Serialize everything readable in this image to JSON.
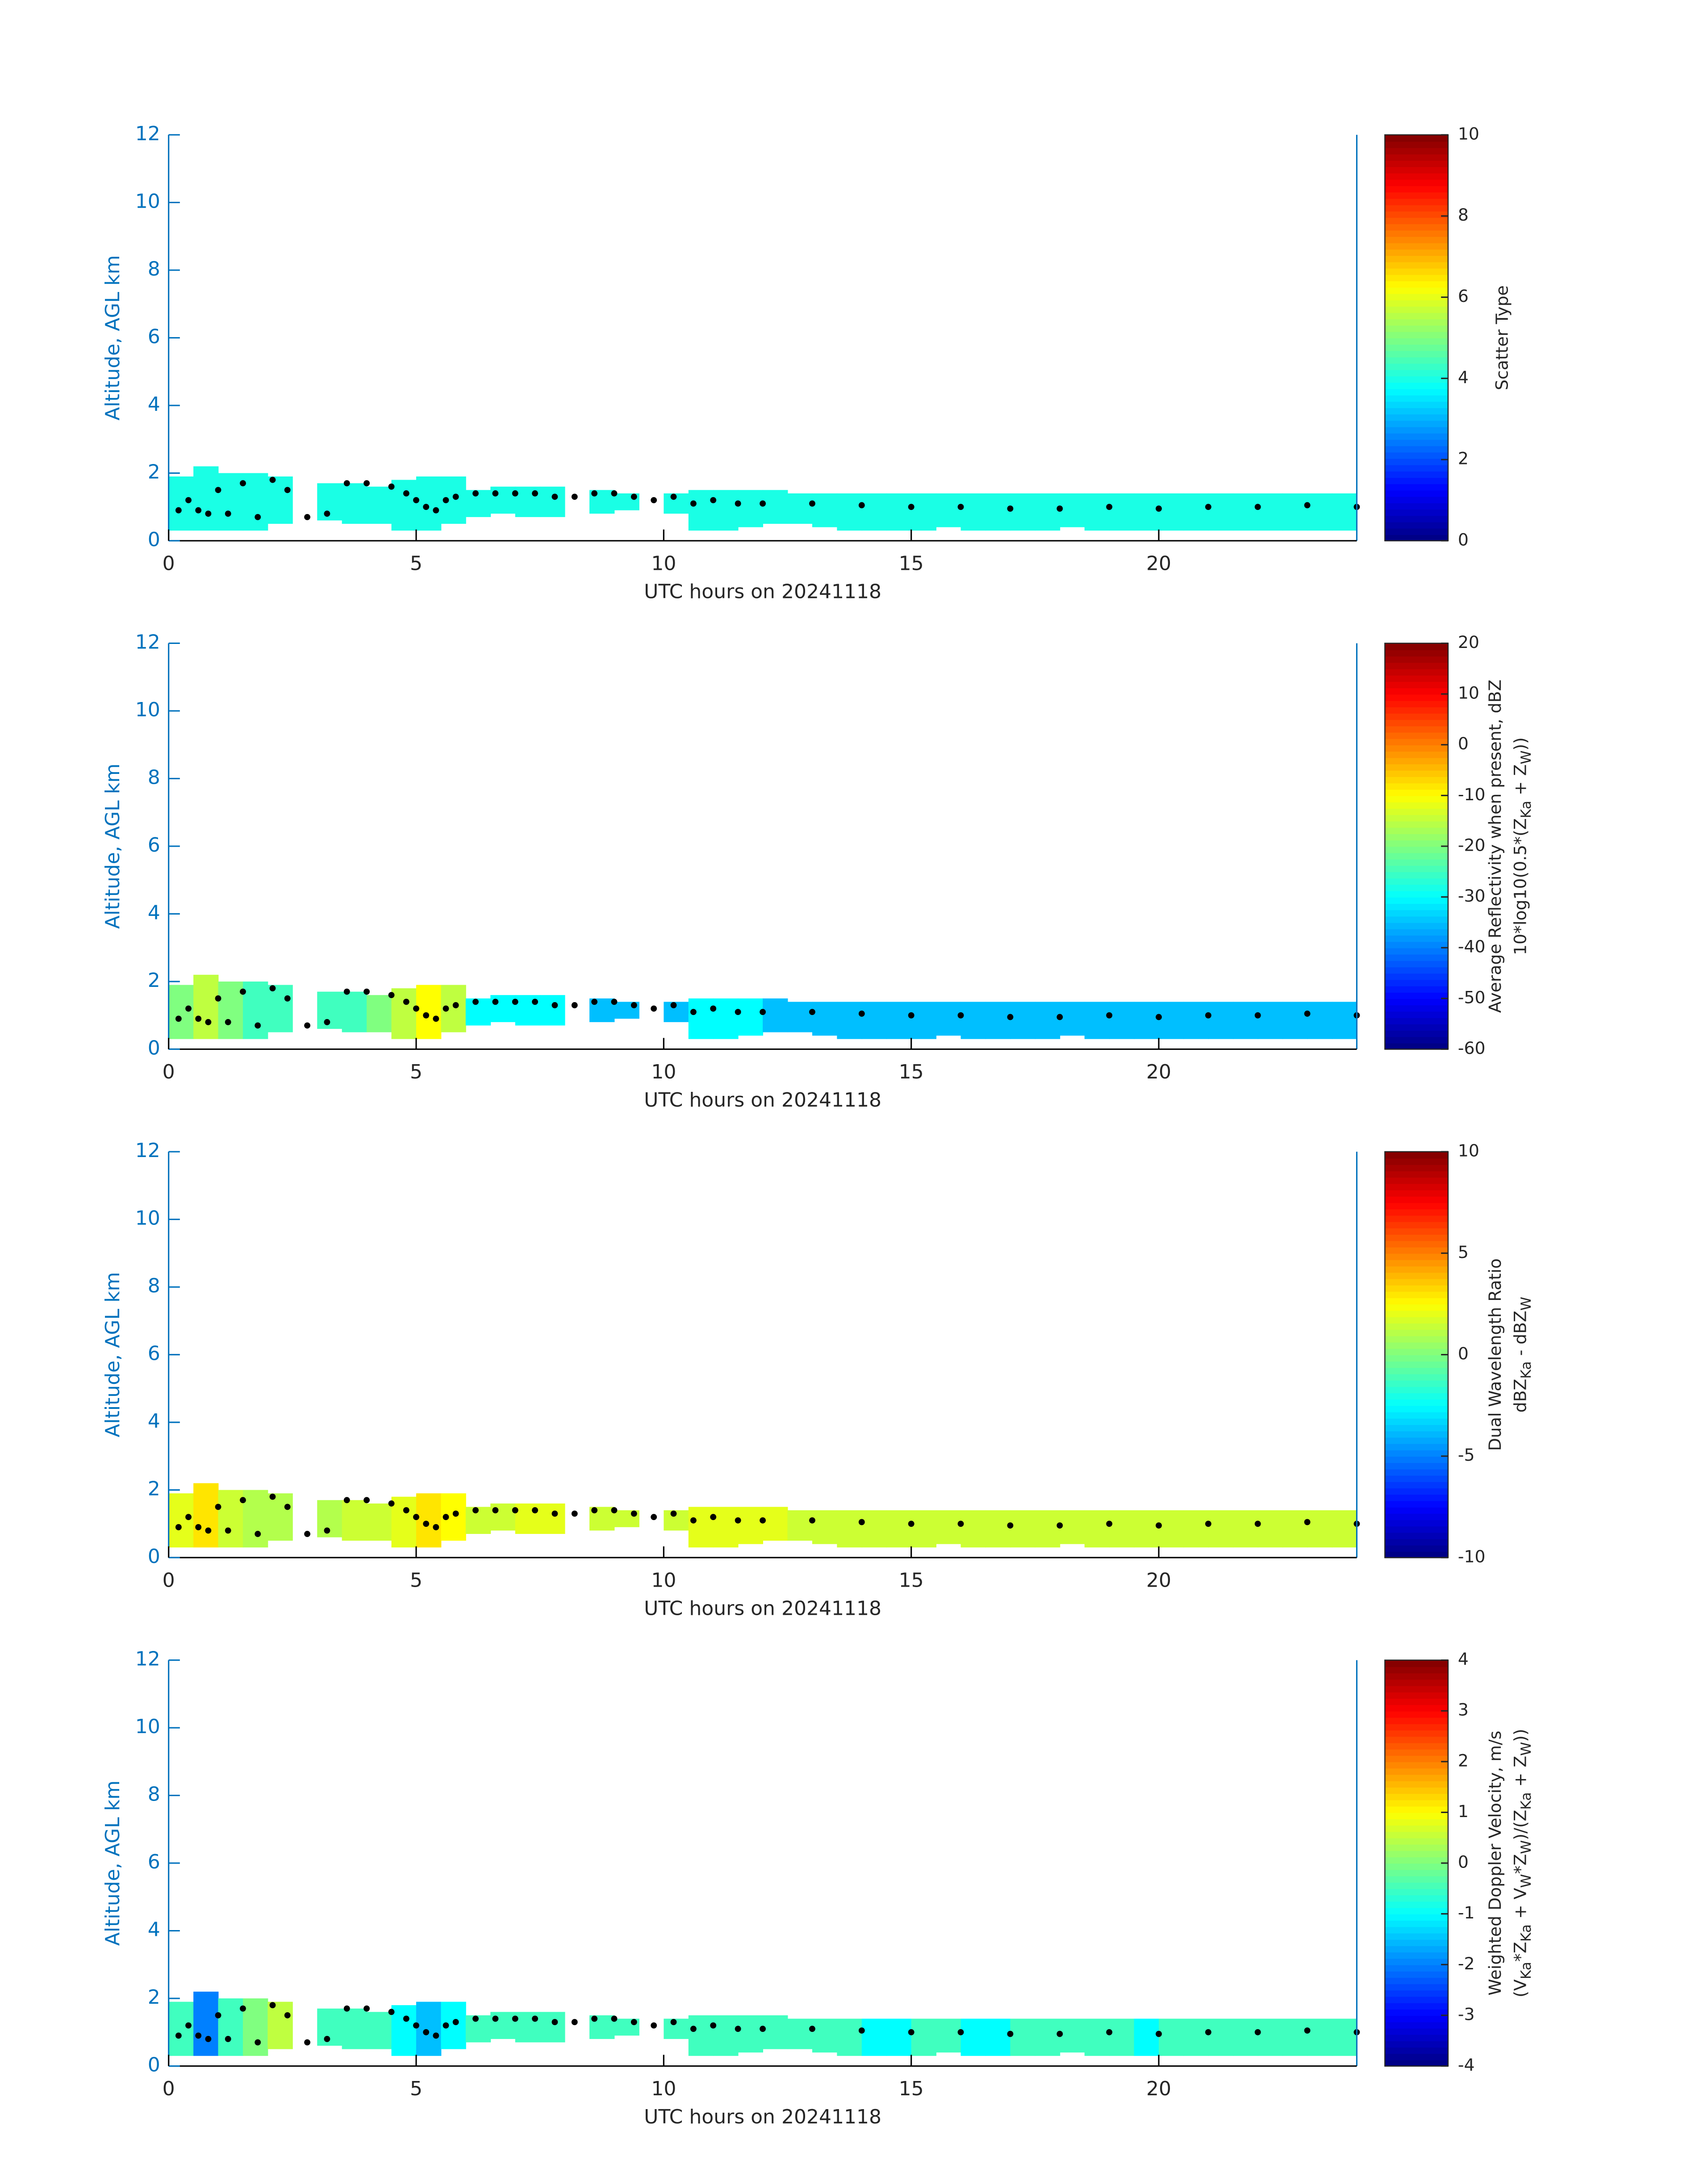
{
  "chart_data": [
    {
      "type": "heatmap",
      "xlabel": "UTC hours on 20241118",
      "ylabel": "Altitude, AGL km",
      "xlim": [
        0,
        24
      ],
      "xticks": [
        0,
        5,
        10,
        15,
        20
      ],
      "ylim": [
        0,
        12
      ],
      "yticks": [
        0,
        2,
        4,
        6,
        8,
        10,
        12
      ],
      "colormap": "jet",
      "clim": [
        0,
        10
      ],
      "cticks": [
        0,
        2,
        4,
        6,
        8,
        10
      ],
      "colorbar_label": [
        [
          "Scatter Type"
        ]
      ],
      "x": [
        0.25,
        0.75,
        1.25,
        1.75,
        2.25,
        2.75,
        3.25,
        3.75,
        4.25,
        4.75,
        5.25,
        5.75,
        6.25,
        6.75,
        7.25,
        7.75,
        8.25,
        8.75,
        9.25,
        9.75,
        10.25,
        10.75,
        11.25,
        11.75,
        12.25,
        12.75,
        13.25,
        13.75,
        14.25,
        14.75,
        15.25,
        15.75,
        16.25,
        16.75,
        17.25,
        17.75,
        18.25,
        18.75,
        19.25,
        19.75,
        20.25,
        20.75,
        21.25,
        21.75,
        22.25,
        22.75,
        23.25,
        23.75
      ],
      "top": [
        1.9,
        2.2,
        2.0,
        2.0,
        1.9,
        null,
        1.7,
        1.7,
        1.6,
        1.8,
        1.9,
        1.9,
        1.5,
        1.6,
        1.6,
        1.6,
        null,
        1.5,
        1.4,
        null,
        1.4,
        1.5,
        1.5,
        1.5,
        1.5,
        1.4,
        1.4,
        1.4,
        1.4,
        1.4,
        1.4,
        1.4,
        1.4,
        1.4,
        1.4,
        1.4,
        1.4,
        1.4,
        1.4,
        1.4,
        1.4,
        1.4,
        1.4,
        1.4,
        1.4,
        1.4,
        1.4,
        1.4
      ],
      "bottom": [
        0.3,
        0.3,
        0.3,
        0.3,
        0.5,
        null,
        0.6,
        0.5,
        0.5,
        0.3,
        0.3,
        0.5,
        0.7,
        0.8,
        0.7,
        0.7,
        null,
        0.8,
        0.9,
        null,
        0.8,
        0.3,
        0.3,
        0.4,
        0.5,
        0.5,
        0.4,
        0.3,
        0.3,
        0.3,
        0.3,
        0.4,
        0.3,
        0.3,
        0.3,
        0.3,
        0.4,
        0.3,
        0.3,
        0.3,
        0.3,
        0.3,
        0.3,
        0.3,
        0.3,
        0.3,
        0.3,
        0.3
      ],
      "values": [
        4,
        4,
        4,
        4,
        4,
        null,
        4,
        4,
        4,
        4,
        4,
        4,
        4,
        4,
        4,
        4,
        null,
        4,
        4,
        null,
        4,
        4,
        4,
        4,
        4,
        4,
        4,
        4,
        4,
        4,
        4,
        4,
        4,
        4,
        4,
        4,
        4,
        4,
        4,
        4,
        4,
        4,
        4,
        4,
        4,
        4,
        4,
        4
      ],
      "cloud_base": {
        "color": "#000000",
        "x": [
          0.2,
          0.4,
          0.6,
          0.8,
          1.0,
          1.2,
          1.5,
          1.8,
          2.1,
          2.4,
          2.8,
          3.2,
          3.6,
          4.0,
          4.5,
          4.8,
          5.0,
          5.2,
          5.4,
          5.6,
          5.8,
          6.2,
          6.6,
          7.0,
          7.4,
          7.8,
          8.2,
          8.6,
          9.0,
          9.4,
          9.8,
          10.2,
          10.6,
          11,
          11.5,
          12,
          13,
          14,
          15,
          16,
          17,
          18,
          19,
          20,
          21,
          22,
          23,
          24
        ],
        "y": [
          0.9,
          1.2,
          0.9,
          0.8,
          1.5,
          0.8,
          1.7,
          0.7,
          1.8,
          1.5,
          0.7,
          0.8,
          1.7,
          1.7,
          1.6,
          1.4,
          1.2,
          1.0,
          0.9,
          1.2,
          1.3,
          1.4,
          1.4,
          1.4,
          1.4,
          1.3,
          1.3,
          1.4,
          1.4,
          1.3,
          1.2,
          1.3,
          1.1,
          1.2,
          1.1,
          1.1,
          1.1,
          1.05,
          1.0,
          1.0,
          0.95,
          0.95,
          1.0,
          0.95,
          1.0,
          1.0,
          1.05,
          1.0
        ]
      }
    },
    {
      "type": "heatmap",
      "xlabel": "UTC hours on 20241118",
      "ylabel": "Altitude, AGL km",
      "xlim": [
        0,
        24
      ],
      "xticks": [
        0,
        5,
        10,
        15,
        20
      ],
      "ylim": [
        0,
        12
      ],
      "yticks": [
        0,
        2,
        4,
        6,
        8,
        10,
        12
      ],
      "colormap": "jet",
      "clim": [
        -60,
        20
      ],
      "cticks": [
        -60,
        -50,
        -40,
        -30,
        -20,
        -10,
        0,
        10,
        20
      ],
      "colorbar_label": [
        [
          "Average Reflectivity when present, dBZ"
        ],
        [
          "10*log10(0.5*(Z",
          "Ka",
          " + Z",
          "W",
          "))"
        ]
      ],
      "x": [
        0.25,
        0.75,
        1.25,
        1.75,
        2.25,
        2.75,
        3.25,
        3.75,
        4.25,
        4.75,
        5.25,
        5.75,
        6.25,
        6.75,
        7.25,
        7.75,
        8.25,
        8.75,
        9.25,
        9.75,
        10.25,
        10.75,
        11.25,
        11.75,
        12.25,
        12.75,
        13.25,
        13.75,
        14.25,
        14.75,
        15.25,
        15.75,
        16.25,
        16.75,
        17.25,
        17.75,
        18.25,
        18.75,
        19.25,
        19.75,
        20.25,
        20.75,
        21.25,
        21.75,
        22.25,
        22.75,
        23.25,
        23.75
      ],
      "top": [
        1.9,
        2.2,
        2.0,
        2.0,
        1.9,
        null,
        1.7,
        1.7,
        1.6,
        1.8,
        1.9,
        1.9,
        1.5,
        1.6,
        1.6,
        1.6,
        null,
        1.5,
        1.4,
        null,
        1.4,
        1.5,
        1.5,
        1.5,
        1.5,
        1.4,
        1.4,
        1.4,
        1.4,
        1.4,
        1.4,
        1.4,
        1.4,
        1.4,
        1.4,
        1.4,
        1.4,
        1.4,
        1.4,
        1.4,
        1.4,
        1.4,
        1.4,
        1.4,
        1.4,
        1.4,
        1.4,
        1.4
      ],
      "bottom": [
        0.3,
        0.3,
        0.3,
        0.3,
        0.5,
        null,
        0.6,
        0.5,
        0.5,
        0.3,
        0.3,
        0.5,
        0.7,
        0.8,
        0.7,
        0.7,
        null,
        0.8,
        0.9,
        null,
        0.8,
        0.3,
        0.3,
        0.4,
        0.5,
        0.5,
        0.4,
        0.3,
        0.3,
        0.3,
        0.3,
        0.4,
        0.3,
        0.3,
        0.3,
        0.3,
        0.4,
        0.3,
        0.3,
        0.3,
        0.3,
        0.3,
        0.3,
        0.3,
        0.3,
        0.3,
        0.3,
        0.3
      ],
      "values": [
        -20,
        -15,
        -20,
        -25,
        -25,
        null,
        -25,
        -25,
        -20,
        -15,
        -10,
        -15,
        -30,
        -30,
        -30,
        -30,
        null,
        -35,
        -35,
        null,
        -35,
        -30,
        -30,
        -30,
        -35,
        -35,
        -35,
        -35,
        -35,
        -35,
        -35,
        -35,
        -35,
        -35,
        -35,
        -35,
        -35,
        -35,
        -35,
        -35,
        -35,
        -35,
        -35,
        -35,
        -35,
        -35,
        -35,
        -35
      ],
      "cloud_base": {
        "color": "#000000",
        "x": [
          0.2,
          0.4,
          0.6,
          0.8,
          1.0,
          1.2,
          1.5,
          1.8,
          2.1,
          2.4,
          2.8,
          3.2,
          3.6,
          4.0,
          4.5,
          4.8,
          5.0,
          5.2,
          5.4,
          5.6,
          5.8,
          6.2,
          6.6,
          7.0,
          7.4,
          7.8,
          8.2,
          8.6,
          9.0,
          9.4,
          9.8,
          10.2,
          10.6,
          11,
          11.5,
          12,
          13,
          14,
          15,
          16,
          17,
          18,
          19,
          20,
          21,
          22,
          23,
          24
        ],
        "y": [
          0.9,
          1.2,
          0.9,
          0.8,
          1.5,
          0.8,
          1.7,
          0.7,
          1.8,
          1.5,
          0.7,
          0.8,
          1.7,
          1.7,
          1.6,
          1.4,
          1.2,
          1.0,
          0.9,
          1.2,
          1.3,
          1.4,
          1.4,
          1.4,
          1.4,
          1.3,
          1.3,
          1.4,
          1.4,
          1.3,
          1.2,
          1.3,
          1.1,
          1.2,
          1.1,
          1.1,
          1.1,
          1.05,
          1.0,
          1.0,
          0.95,
          0.95,
          1.0,
          0.95,
          1.0,
          1.0,
          1.05,
          1.0
        ]
      }
    },
    {
      "type": "heatmap",
      "xlabel": "UTC hours on 20241118",
      "ylabel": "Altitude, AGL km",
      "xlim": [
        0,
        24
      ],
      "xticks": [
        0,
        5,
        10,
        15,
        20
      ],
      "ylim": [
        0,
        12
      ],
      "yticks": [
        0,
        2,
        4,
        6,
        8,
        10,
        12
      ],
      "colormap": "jet",
      "clim": [
        -10,
        10
      ],
      "cticks": [
        -10,
        -5,
        0,
        5,
        10
      ],
      "colorbar_label": [
        [
          "Dual Wavelength Ratio"
        ],
        [
          "dBZ",
          "Ka",
          " - dBZ",
          "W"
        ]
      ],
      "x": [
        0.25,
        0.75,
        1.25,
        1.75,
        2.25,
        2.75,
        3.25,
        3.75,
        4.25,
        4.75,
        5.25,
        5.75,
        6.25,
        6.75,
        7.25,
        7.75,
        8.25,
        8.75,
        9.25,
        9.75,
        10.25,
        10.75,
        11.25,
        11.75,
        12.25,
        12.75,
        13.25,
        13.75,
        14.25,
        14.75,
        15.25,
        15.75,
        16.25,
        16.75,
        17.25,
        17.75,
        18.25,
        18.75,
        19.25,
        19.75,
        20.25,
        20.75,
        21.25,
        21.75,
        22.25,
        22.75,
        23.25,
        23.75
      ],
      "top": [
        1.9,
        2.2,
        2.0,
        2.0,
        1.9,
        null,
        1.7,
        1.7,
        1.6,
        1.8,
        1.9,
        1.9,
        1.5,
        1.6,
        1.6,
        1.6,
        null,
        1.5,
        1.4,
        null,
        1.4,
        1.5,
        1.5,
        1.5,
        1.5,
        1.4,
        1.4,
        1.4,
        1.4,
        1.4,
        1.4,
        1.4,
        1.4,
        1.4,
        1.4,
        1.4,
        1.4,
        1.4,
        1.4,
        1.4,
        1.4,
        1.4,
        1.4,
        1.4,
        1.4,
        1.4,
        1.4,
        1.4
      ],
      "bottom": [
        0.3,
        0.3,
        0.3,
        0.3,
        0.5,
        null,
        0.6,
        0.5,
        0.5,
        0.3,
        0.3,
        0.5,
        0.7,
        0.8,
        0.7,
        0.7,
        null,
        0.8,
        0.9,
        null,
        0.8,
        0.3,
        0.3,
        0.4,
        0.5,
        0.5,
        0.4,
        0.3,
        0.3,
        0.3,
        0.3,
        0.4,
        0.3,
        0.3,
        0.3,
        0.3,
        0.4,
        0.3,
        0.3,
        0.3,
        0.3,
        0.3,
        0.3,
        0.3,
        0.3,
        0.3,
        0.3,
        0.3
      ],
      "values": [
        2,
        3,
        1.5,
        1,
        1,
        null,
        1,
        1.5,
        1.5,
        2,
        3,
        2.5,
        1.5,
        1.5,
        2,
        2,
        null,
        1.5,
        1.5,
        null,
        1.5,
        2,
        2,
        2,
        2,
        1.5,
        1.5,
        1.5,
        1.5,
        1.5,
        1.5,
        1.5,
        1.5,
        1.5,
        1.5,
        1.5,
        1.5,
        1.5,
        1.5,
        1.5,
        1.5,
        1.5,
        1.5,
        1.5,
        1.5,
        1.5,
        1.5,
        1.5
      ],
      "cloud_base": {
        "color": "#000000",
        "x": [
          0.2,
          0.4,
          0.6,
          0.8,
          1.0,
          1.2,
          1.5,
          1.8,
          2.1,
          2.4,
          2.8,
          3.2,
          3.6,
          4.0,
          4.5,
          4.8,
          5.0,
          5.2,
          5.4,
          5.6,
          5.8,
          6.2,
          6.6,
          7.0,
          7.4,
          7.8,
          8.2,
          8.6,
          9.0,
          9.4,
          9.8,
          10.2,
          10.6,
          11,
          11.5,
          12,
          13,
          14,
          15,
          16,
          17,
          18,
          19,
          20,
          21,
          22,
          23,
          24
        ],
        "y": [
          0.9,
          1.2,
          0.9,
          0.8,
          1.5,
          0.8,
          1.7,
          0.7,
          1.8,
          1.5,
          0.7,
          0.8,
          1.7,
          1.7,
          1.6,
          1.4,
          1.2,
          1.0,
          0.9,
          1.2,
          1.3,
          1.4,
          1.4,
          1.4,
          1.4,
          1.3,
          1.3,
          1.4,
          1.4,
          1.3,
          1.2,
          1.3,
          1.1,
          1.2,
          1.1,
          1.1,
          1.1,
          1.05,
          1.0,
          1.0,
          0.95,
          0.95,
          1.0,
          0.95,
          1.0,
          1.0,
          1.05,
          1.0
        ]
      }
    },
    {
      "type": "heatmap",
      "xlabel": "UTC hours on 20241118",
      "ylabel": "Altitude, AGL km",
      "xlim": [
        0,
        24
      ],
      "xticks": [
        0,
        5,
        10,
        15,
        20
      ],
      "ylim": [
        0,
        12
      ],
      "yticks": [
        0,
        2,
        4,
        6,
        8,
        10,
        12
      ],
      "colormap": "jet",
      "clim": [
        -4,
        4
      ],
      "cticks": [
        -4,
        -3,
        -2,
        -1,
        0,
        1,
        2,
        3,
        4
      ],
      "colorbar_label": [
        [
          "Weighted Doppler Velocity, m/s"
        ],
        [
          "(V",
          "Ka",
          "*Z",
          "Ka",
          " + V",
          "W",
          "*Z",
          "W",
          ")/(Z",
          "Ka",
          " + Z",
          "W",
          "))"
        ]
      ],
      "x": [
        0.25,
        0.75,
        1.25,
        1.75,
        2.25,
        2.75,
        3.25,
        3.75,
        4.25,
        4.75,
        5.25,
        5.75,
        6.25,
        6.75,
        7.25,
        7.75,
        8.25,
        8.75,
        9.25,
        9.75,
        10.25,
        10.75,
        11.25,
        11.75,
        12.25,
        12.75,
        13.25,
        13.75,
        14.25,
        14.75,
        15.25,
        15.75,
        16.25,
        16.75,
        17.25,
        17.75,
        18.25,
        18.75,
        19.25,
        19.75,
        20.25,
        20.75,
        21.25,
        21.75,
        22.25,
        22.75,
        23.25,
        23.75
      ],
      "top": [
        1.9,
        2.2,
        2.0,
        2.0,
        1.9,
        null,
        1.7,
        1.7,
        1.6,
        1.8,
        1.9,
        1.9,
        1.5,
        1.6,
        1.6,
        1.6,
        null,
        1.5,
        1.4,
        null,
        1.4,
        1.5,
        1.5,
        1.5,
        1.5,
        1.4,
        1.4,
        1.4,
        1.4,
        1.4,
        1.4,
        1.4,
        1.4,
        1.4,
        1.4,
        1.4,
        1.4,
        1.4,
        1.4,
        1.4,
        1.4,
        1.4,
        1.4,
        1.4,
        1.4,
        1.4,
        1.4,
        1.4
      ],
      "bottom": [
        0.3,
        0.3,
        0.3,
        0.3,
        0.5,
        null,
        0.6,
        0.5,
        0.5,
        0.3,
        0.3,
        0.5,
        0.7,
        0.8,
        0.7,
        0.7,
        null,
        0.8,
        0.9,
        null,
        0.8,
        0.3,
        0.3,
        0.4,
        0.5,
        0.5,
        0.4,
        0.3,
        0.3,
        0.3,
        0.3,
        0.4,
        0.3,
        0.3,
        0.3,
        0.3,
        0.4,
        0.3,
        0.3,
        0.3,
        0.3,
        0.3,
        0.3,
        0.3,
        0.3,
        0.3,
        0.3,
        0.3
      ],
      "values": [
        -0.5,
        -2,
        -0.5,
        0,
        0.5,
        null,
        -0.5,
        -0.5,
        -0.5,
        -1,
        -1.5,
        -1,
        -0.5,
        -0.5,
        -0.5,
        -0.5,
        null,
        -0.5,
        -0.5,
        null,
        -0.5,
        -0.5,
        -0.5,
        -0.5,
        -0.5,
        -0.5,
        -0.5,
        -0.5,
        -1,
        -1,
        -0.5,
        -0.5,
        -1,
        -1,
        -0.5,
        -0.5,
        -0.5,
        -0.5,
        -0.5,
        -1,
        -0.5,
        -0.5,
        -0.5,
        -0.5,
        -0.5,
        -0.5,
        -0.5,
        -0.5
      ],
      "cloud_base": {
        "color": "#000000",
        "x": [
          0.2,
          0.4,
          0.6,
          0.8,
          1.0,
          1.2,
          1.5,
          1.8,
          2.1,
          2.4,
          2.8,
          3.2,
          3.6,
          4.0,
          4.5,
          4.8,
          5.0,
          5.2,
          5.4,
          5.6,
          5.8,
          6.2,
          6.6,
          7.0,
          7.4,
          7.8,
          8.2,
          8.6,
          9.0,
          9.4,
          9.8,
          10.2,
          10.6,
          11,
          11.5,
          12,
          13,
          14,
          15,
          16,
          17,
          18,
          19,
          20,
          21,
          22,
          23,
          24
        ],
        "y": [
          0.9,
          1.2,
          0.9,
          0.8,
          1.5,
          0.8,
          1.7,
          0.7,
          1.8,
          1.5,
          0.7,
          0.8,
          1.7,
          1.7,
          1.6,
          1.4,
          1.2,
          1.0,
          0.9,
          1.2,
          1.3,
          1.4,
          1.4,
          1.4,
          1.4,
          1.3,
          1.3,
          1.4,
          1.4,
          1.3,
          1.2,
          1.3,
          1.1,
          1.2,
          1.1,
          1.1,
          1.1,
          1.05,
          1.0,
          1.0,
          0.95,
          0.95,
          1.0,
          0.95,
          1.0,
          1.0,
          1.05,
          1.0
        ]
      }
    }
  ]
}
